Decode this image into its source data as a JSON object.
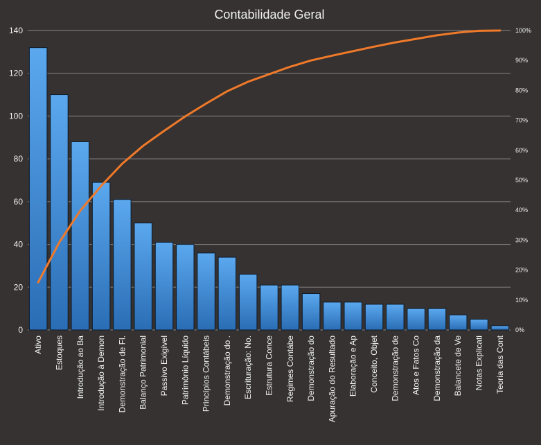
{
  "chart_data": {
    "type": "bar",
    "title": "Contabilidade Geral",
    "xlabel": "",
    "ylabel": "",
    "ylim": [
      0,
      140
    ],
    "yticks": [
      "0",
      "20",
      "40",
      "60",
      "80",
      "100",
      "120",
      "140"
    ],
    "y2lim": [
      0,
      100
    ],
    "y2ticks": [
      "0%",
      "10%",
      "20%",
      "30%",
      "40%",
      "50%",
      "60%",
      "70%",
      "80%",
      "90%",
      "100%"
    ],
    "grid": true,
    "categories": [
      "Ativo",
      "Estoques",
      "Introdução  ao Ba",
      "Introdução  à Demon",
      "Demonstração de Fl.",
      "Balanço Patrimonial",
      "Passivo Exigível",
      "Patrimônio  Líquido",
      "Princípios Contábeis",
      "Demonstração do  .",
      "Escrituração: No.",
      "Estrutura Conce",
      "Regimes Contábe",
      "Demonstração do",
      "Apuração do Resultado",
      "Elaboração e Ap",
      "Conceito, Objet",
      "Demonstração de",
      "Atos e Fatos Co",
      "Demonstração da",
      "Balancete de Ve",
      "Notas Explicati",
      "Teoria das Cont"
    ],
    "values": [
      132,
      110,
      88,
      69,
      61,
      50,
      41,
      40,
      36,
      34,
      26,
      21,
      21,
      17,
      13,
      13,
      12,
      12,
      10,
      10,
      7,
      5,
      2
    ],
    "cumulative_percent": [
      15.9,
      29.2,
      39.8,
      48.1,
      55.5,
      61.5,
      66.5,
      71.3,
      75.6,
      79.7,
      82.9,
      85.4,
      87.9,
      90.0,
      91.6,
      93.1,
      94.6,
      96.0,
      97.2,
      98.4,
      99.3,
      99.9,
      100.0
    ],
    "colors": {
      "background": "#353231",
      "bar_top": "#5ba8ee",
      "bar_bottom": "#2a6db5",
      "bar_stroke": "#0d1a2a",
      "line": "#f07a2a",
      "grid": "#8a8888",
      "text": "#f2f2f2"
    }
  }
}
